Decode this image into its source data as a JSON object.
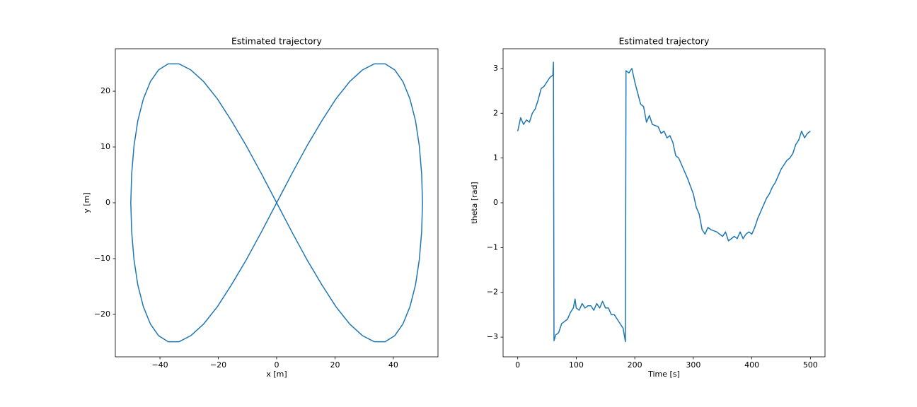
{
  "chart_data": [
    {
      "type": "line",
      "title": "Estimated trajectory",
      "xlabel": "x [m]",
      "ylabel": "y [m]",
      "xlim": [
        -55.3,
        55.3
      ],
      "ylim": [
        -27.6,
        27.6
      ],
      "xticks": [
        {
          "value": -40,
          "label": "−40"
        },
        {
          "value": -20,
          "label": "−20"
        },
        0,
        20,
        40
      ],
      "yticks": [
        {
          "value": -20,
          "label": "−20"
        },
        {
          "value": -10,
          "label": "−10"
        },
        0,
        10,
        20
      ],
      "x": [
        50,
        49.7,
        48.9,
        47.6,
        45.7,
        43.3,
        40.5,
        37.2,
        33.5,
        29.4,
        25,
        20.3,
        15.5,
        10.4,
        5.2,
        0,
        -5.2,
        -10.4,
        -15.5,
        -20.3,
        -25,
        -29.4,
        -33.5,
        -37.2,
        -40.5,
        -43.3,
        -45.7,
        -47.6,
        -48.9,
        -49.7,
        -50,
        -49.7,
        -48.9,
        -47.6,
        -45.7,
        -43.3,
        -40.5,
        -37.2,
        -33.5,
        -29.4,
        -25,
        -20.3,
        -15.5,
        -10.4,
        -5.2,
        0,
        5.2,
        10.4,
        15.5,
        20.3,
        25,
        29.4,
        33.5,
        37.2,
        40.5,
        43.3,
        45.7,
        47.6,
        48.9,
        49.7,
        50
      ],
      "series": [
        {
          "color": "#1f77b4",
          "values": [
            0,
            5.2,
            10.2,
            14.7,
            18.6,
            21.7,
            23.8,
            24.9,
            24.9,
            23.8,
            21.7,
            18.6,
            14.7,
            10.2,
            5.2,
            0,
            -5.2,
            -10.2,
            -14.7,
            -18.6,
            -21.7,
            -23.8,
            -24.9,
            -24.9,
            -23.8,
            -21.7,
            -18.6,
            -14.7,
            -10.2,
            -5.2,
            0,
            5.2,
            10.2,
            14.7,
            18.6,
            21.7,
            23.8,
            24.9,
            24.9,
            23.8,
            21.7,
            18.6,
            14.7,
            10.2,
            5.2,
            0,
            -5.2,
            -10.2,
            -14.7,
            -18.6,
            -21.7,
            -23.8,
            -24.9,
            -24.9,
            -23.8,
            -21.7,
            -18.6,
            -14.7,
            -10.2,
            -5.2,
            0
          ]
        }
      ]
    },
    {
      "type": "line",
      "title": "Estimated trajectory",
      "xlabel": "Time [s]",
      "ylabel": "theta [rad]",
      "xlim": [
        -25,
        525
      ],
      "ylim": [
        -3.44,
        3.44
      ],
      "xticks": [
        0,
        100,
        200,
        300,
        400,
        500
      ],
      "yticks": [
        {
          "value": -3,
          "label": "−3"
        },
        {
          "value": -2,
          "label": "−2"
        },
        {
          "value": -1,
          "label": "−1"
        },
        0,
        1,
        2,
        3
      ],
      "x": [
        0,
        5,
        10,
        15,
        20,
        25,
        30,
        35,
        40,
        45,
        50,
        55,
        60,
        61,
        62,
        65,
        70,
        75,
        80,
        85,
        90,
        95,
        98,
        100,
        105,
        110,
        115,
        120,
        125,
        130,
        135,
        140,
        145,
        150,
        155,
        160,
        165,
        170,
        175,
        180,
        184,
        185,
        190,
        195,
        200,
        205,
        210,
        215,
        220,
        225,
        230,
        240,
        245,
        250,
        255,
        260,
        265,
        270,
        275,
        280,
        290,
        300,
        305,
        310,
        315,
        320,
        325,
        330,
        340,
        350,
        355,
        360,
        370,
        375,
        380,
        385,
        390,
        395,
        400,
        405,
        410,
        415,
        420,
        425,
        430,
        435,
        440,
        445,
        450,
        455,
        460,
        465,
        470,
        475,
        480,
        485,
        490,
        495,
        500
      ],
      "series": [
        {
          "color": "#1f77b4",
          "values": [
            1.6,
            1.9,
            1.75,
            1.85,
            1.8,
            2.0,
            2.1,
            2.3,
            2.55,
            2.6,
            2.7,
            2.8,
            2.85,
            3.14,
            -3.08,
            -2.95,
            -2.9,
            -2.7,
            -2.65,
            -2.6,
            -2.45,
            -2.35,
            -2.15,
            -2.35,
            -2.4,
            -2.25,
            -2.35,
            -2.3,
            -2.3,
            -2.4,
            -2.25,
            -2.35,
            -2.2,
            -2.35,
            -2.35,
            -2.5,
            -2.5,
            -2.6,
            -2.7,
            -2.8,
            -3.1,
            2.95,
            2.9,
            3.0,
            2.7,
            2.45,
            2.2,
            2.15,
            1.8,
            1.95,
            1.75,
            1.7,
            1.55,
            1.6,
            1.45,
            1.5,
            1.35,
            1.05,
            1.0,
            0.85,
            0.55,
            0.2,
            -0.1,
            -0.25,
            -0.6,
            -0.7,
            -0.55,
            -0.6,
            -0.65,
            -0.75,
            -0.65,
            -0.85,
            -0.75,
            -0.8,
            -0.65,
            -0.8,
            -0.7,
            -0.65,
            -0.7,
            -0.55,
            -0.35,
            -0.2,
            -0.05,
            0.1,
            0.2,
            0.35,
            0.45,
            0.6,
            0.75,
            0.85,
            0.95,
            1.0,
            1.1,
            1.3,
            1.4,
            1.6,
            1.45,
            1.55,
            1.6
          ]
        }
      ]
    }
  ]
}
